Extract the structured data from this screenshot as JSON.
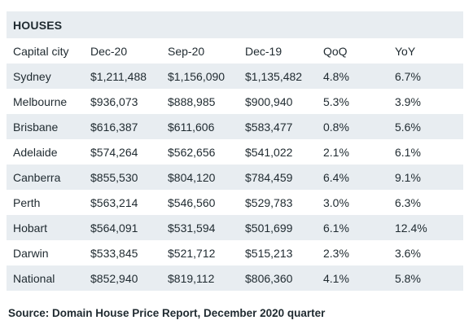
{
  "table": {
    "title": "HOUSES",
    "headers": [
      "Capital city",
      "Dec-20",
      "Sep-20",
      "Dec-19",
      "QoQ",
      "YoY"
    ],
    "rows": [
      [
        "Sydney",
        "$1,211,488",
        "$1,156,090",
        "$1,135,482",
        "4.8%",
        "6.7%"
      ],
      [
        "Melbourne",
        "$936,073",
        "$888,985",
        "$900,940",
        "5.3%",
        "3.9%"
      ],
      [
        "Brisbane",
        "$616,387",
        "$611,606",
        "$583,477",
        "0.8%",
        "5.6%"
      ],
      [
        "Adelaide",
        "$574,264",
        "$562,656",
        "$541,022",
        "2.1%",
        "6.1%"
      ],
      [
        "Canberra",
        "$855,530",
        "$804,120",
        "$784,459",
        "6.4%",
        "9.1%"
      ],
      [
        "Perth",
        "$563,214",
        "$546,560",
        "$529,783",
        "3.0%",
        "6.3%"
      ],
      [
        "Hobart",
        "$564,091",
        "$531,594",
        "$501,699",
        "6.1%",
        "12.4%"
      ],
      [
        "Darwin",
        "$533,845",
        "$521,712",
        "$515,213",
        "2.3%",
        "3.6%"
      ],
      [
        "National",
        "$852,940",
        "$819,112",
        "$806,360",
        "4.1%",
        "5.8%"
      ]
    ]
  },
  "source": "Source: Domain House Price Report, December 2020 quarter"
}
